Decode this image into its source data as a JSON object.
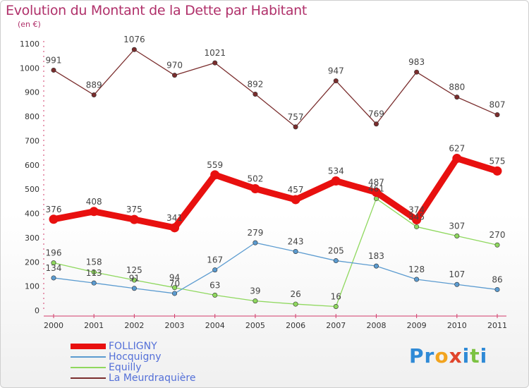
{
  "header": {
    "title": "Evolution du Montant de la Dette par Habitant",
    "subtitle": "(en €)"
  },
  "logo": {
    "text": "Proxiti",
    "letters": [
      {
        "ch": "P",
        "color": "#2f8ad6"
      },
      {
        "ch": "r",
        "color": "#2f8ad6"
      },
      {
        "ch": "o",
        "color": "#f2a41f"
      },
      {
        "ch": "x",
        "color": "#e0452c"
      },
      {
        "ch": "i",
        "color": "#2f8ad6"
      },
      {
        "ch": "t",
        "color": "#7cc242"
      },
      {
        "ch": "i",
        "color": "#2f8ad6"
      }
    ]
  },
  "chart_data": {
    "type": "line",
    "title": "Evolution du Montant de la Dette par Habitant",
    "ylabel": "(en €)",
    "xlabel": "",
    "ylim": [
      0,
      1100
    ],
    "yticks": [
      0,
      100,
      200,
      300,
      400,
      500,
      600,
      700,
      800,
      900,
      1000,
      1100
    ],
    "x": [
      "2000",
      "2001",
      "2002",
      "2003",
      "2004",
      "2005",
      "2006",
      "2007",
      "2008",
      "2009",
      "2010",
      "2011"
    ],
    "grid": false,
    "legend_position": "bottom-left",
    "series": [
      {
        "name": "FOLLIGNY",
        "color": "#e8100f",
        "width": "thick",
        "values": [
          376,
          408,
          375,
          341,
          559,
          502,
          457,
          534,
          487,
          374,
          627,
          575
        ]
      },
      {
        "name": "Hocquigny",
        "color": "#5b9bd0",
        "width": "thin",
        "values": [
          134,
          113,
          91,
          70,
          167,
          279,
          243,
          205,
          183,
          128,
          107,
          86
        ]
      },
      {
        "name": "Equilly",
        "color": "#8fd85e",
        "width": "thin",
        "values": [
          196,
          158,
          125,
          94,
          63,
          39,
          26,
          16,
          461,
          345,
          307,
          270
        ]
      },
      {
        "name": "La Meurdraquière",
        "color": "#7a2d2d",
        "width": "thin",
        "values": [
          991,
          889,
          1076,
          970,
          1021,
          892,
          757,
          947,
          769,
          983,
          880,
          807
        ]
      }
    ],
    "data_labels": {
      "FOLLIGNY": [
        "376",
        "408",
        "375",
        "341",
        "559",
        "502",
        "457",
        "534",
        "487",
        "374",
        "627",
        "575"
      ],
      "Hocquigny": [
        "134",
        "113",
        "91",
        "70",
        "167",
        "279",
        "243",
        "205",
        "183",
        "128",
        "107",
        "86"
      ],
      "Equilly": [
        "196",
        "158",
        "125",
        "94",
        "63",
        "39",
        "26",
        "16",
        "461",
        "345",
        "307",
        "270"
      ],
      "La Meurdraquière": [
        "991",
        "889",
        "1076",
        "970",
        "1021",
        "892",
        "757",
        "947",
        "769",
        "983",
        "880",
        "807"
      ]
    }
  }
}
